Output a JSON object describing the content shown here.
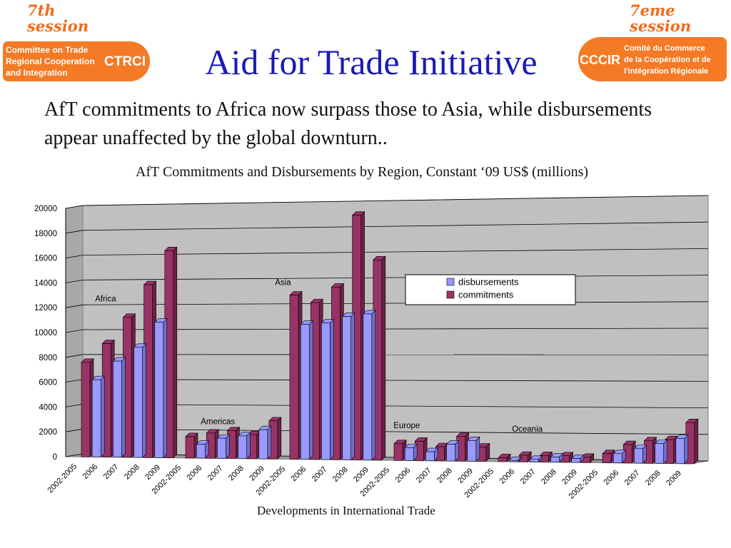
{
  "header": {
    "title": "Aid for Trade Initiative",
    "subtitle": "AfT commitments to Africa now surpass those to Asia, while disbursements appear unaffected by the global downturn.."
  },
  "logo_left": {
    "session": "7th session",
    "line1": "Committee on Trade",
    "line2": "Regional Cooperation",
    "line3": "and Integration",
    "abbr": "CTRCI"
  },
  "logo_right": {
    "session": "7eme session",
    "abbr": "CCCIR",
    "line1": "Comité du Commerce",
    "line2": "de la Coopération et de",
    "line3": "l'intégration Régionale"
  },
  "chart_caption": "AfT Commitments and Disbursements by Region, Constant ‘09 US$ (millions)",
  "footer_label": "Developments in International Trade",
  "colors": {
    "title": "#1a1ab4",
    "disbursements": "#9999ff",
    "commitments": "#993366",
    "wall": "#c0c0c0",
    "brand": "#f47a25"
  },
  "chart_data": {
    "type": "bar",
    "title": "AfT Commitments and Disbursements by Region, Constant ‘09 US$ (millions)",
    "ylim": [
      0,
      20000
    ],
    "yticks": [
      "0",
      "2000",
      "4000",
      "6000",
      "8000",
      "10000",
      "12000",
      "14000",
      "16000",
      "18000",
      "20000"
    ],
    "legend_position": "top-right",
    "grid": true,
    "categories": [
      "2002-2005",
      "2006",
      "2007",
      "2008",
      "2009",
      "2002-2005",
      "2006",
      "2007",
      "2008",
      "2009",
      "2002-2005",
      "2006",
      "2007",
      "2008",
      "2009",
      "2002-2005",
      "2006",
      "2007",
      "2008",
      "2009",
      "2002-2005",
      "2006",
      "2007",
      "2008",
      "2009",
      "2002-2005",
      "2006",
      "2007",
      "2008",
      "2009"
    ],
    "groups": [
      {
        "label": "Africa",
        "start": 0
      },
      {
        "label": "Americas",
        "start": 5
      },
      {
        "label": "Asia",
        "start": 10
      },
      {
        "label": "Europe",
        "start": 15
      },
      {
        "label": "Oceania",
        "start": 20
      },
      {
        "label": "",
        "start": 25
      }
    ],
    "series": [
      {
        "name": "disbursements",
        "values": [
          null,
          6200,
          7700,
          8800,
          10800,
          null,
          1100,
          1600,
          1800,
          2300,
          null,
          10600,
          10700,
          11200,
          11400,
          null,
          1000,
          700,
          1300,
          1600,
          null,
          100,
          200,
          400,
          300,
          null,
          700,
          1100,
          1500,
          1900
        ]
      },
      {
        "name": "commitments",
        "values": [
          7600,
          9100,
          11200,
          13800,
          16500,
          1700,
          2000,
          2200,
          1900,
          3000,
          12900,
          12300,
          13500,
          19100,
          15600,
          1300,
          1500,
          1100,
          1900,
          1100,
          300,
          500,
          500,
          500,
          400,
          700,
          1400,
          1700,
          1800,
          3100
        ]
      }
    ]
  }
}
